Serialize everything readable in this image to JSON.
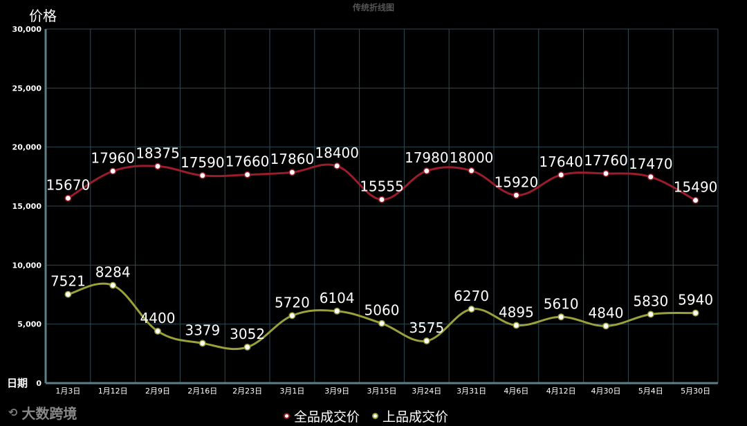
{
  "chart_data": {
    "type": "line",
    "title": "传统折线图",
    "ylabel": "价格",
    "xlabel": "日期",
    "ylim": [
      0,
      30000
    ],
    "yticks": [
      "0",
      "5,000",
      "10,000",
      "15,000",
      "20,000",
      "25,000",
      "30,000"
    ],
    "ytick_values": [
      0,
      5000,
      10000,
      15000,
      20000,
      25000,
      30000
    ],
    "categories": [
      "1月3日",
      "1月12日",
      "2月9日",
      "2月16日",
      "2月23日",
      "3月1日",
      "3月9日",
      "3月15日",
      "3月24日",
      "3月31日",
      "4月6日",
      "4月12日",
      "4月30日",
      "5月4日",
      "5月30日"
    ],
    "series": [
      {
        "name": "全品成交价",
        "color": "#9b1c2a",
        "values": [
          15670,
          17960,
          18375,
          17590,
          17660,
          17860,
          18400,
          15555,
          17980,
          18000,
          15920,
          17640,
          17760,
          17470,
          15490
        ]
      },
      {
        "name": "上品成交价",
        "color": "#9aa03a",
        "values": [
          7521,
          8284,
          4400,
          3379,
          3052,
          5720,
          6104,
          5060,
          3575,
          6270,
          4895,
          5610,
          4840,
          5830,
          5940
        ]
      }
    ],
    "grid": true,
    "legend_position": "bottom-center"
  },
  "watermark": "大数跨境"
}
